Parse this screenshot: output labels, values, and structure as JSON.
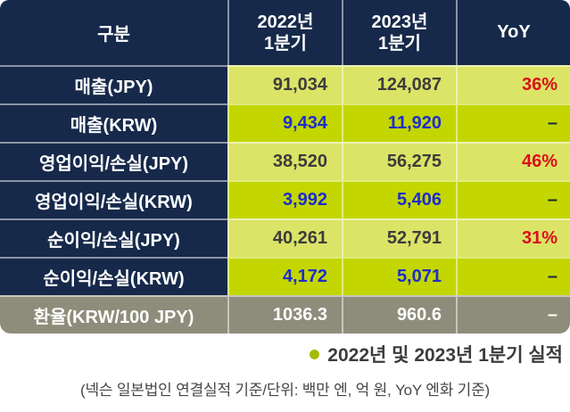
{
  "table": {
    "header": {
      "c0": "구분",
      "c1_line1": "2022년",
      "c1_line2": "1분기",
      "c2_line1": "2023년",
      "c2_line2": "1분기",
      "c3": "YoY"
    },
    "rows": [
      {
        "label": "매출(JPY)",
        "v2022": "91,034",
        "v2023": "124,087",
        "yoy": "36%"
      },
      {
        "label": "매출(KRW)",
        "v2022": "9,434",
        "v2023": "11,920",
        "yoy": "–"
      },
      {
        "label": "영업이익/손실(JPY)",
        "v2022": "38,520",
        "v2023": "56,275",
        "yoy": "46%"
      },
      {
        "label": "영업이익/손실(KRW)",
        "v2022": "3,992",
        "v2023": "5,406",
        "yoy": "–"
      },
      {
        "label": "순이익/손실(JPY)",
        "v2022": "40,261",
        "v2023": "52,791",
        "yoy": "31%"
      },
      {
        "label": "순이익/손실(KRW)",
        "v2022": "4,172",
        "v2023": "5,071",
        "yoy": "–"
      },
      {
        "label": "환율(KRW/100 JPY)",
        "v2022": "1036.3",
        "v2023": "960.6",
        "yoy": "–"
      }
    ]
  },
  "footer": {
    "caption": "2022년 및 2023년 1분기 실적",
    "note": "(넥슨 일본법인 연결실적 기준/단위: 백만 엔, 억 원, YoY 엔화 기준)"
  },
  "colors": {
    "header_navy": "#16294a",
    "jpy_row_green": "#dbe466",
    "krw_row_green": "#c3d600",
    "rate_row_gray": "#8e8d7b",
    "yoy_red": "#d9101c",
    "krw_value_blue": "#1e2dcb",
    "bullet_green": "#a6b907"
  },
  "chart_data": {
    "type": "table",
    "title": "2022년 및 2023년 1분기 실적",
    "columns": [
      "구분",
      "2022년 1분기",
      "2023년 1분기",
      "YoY"
    ],
    "rows": [
      [
        "매출(JPY)",
        91034,
        124087,
        "36%"
      ],
      [
        "매출(KRW)",
        9434,
        11920,
        "-"
      ],
      [
        "영업이익/손실(JPY)",
        38520,
        56275,
        "46%"
      ],
      [
        "영업이익/손실(KRW)",
        3992,
        5406,
        "-"
      ],
      [
        "순이익/손실(JPY)",
        40261,
        52791,
        "31%"
      ],
      [
        "순이익/손실(KRW)",
        4172,
        5071,
        "-"
      ],
      [
        "환율(KRW/100 JPY)",
        1036.3,
        960.6,
        "-"
      ]
    ],
    "note": "(넥슨 일본법인 연결실적 기준/단위: 백만 엔, 억 원, YoY 엔화 기준)"
  }
}
